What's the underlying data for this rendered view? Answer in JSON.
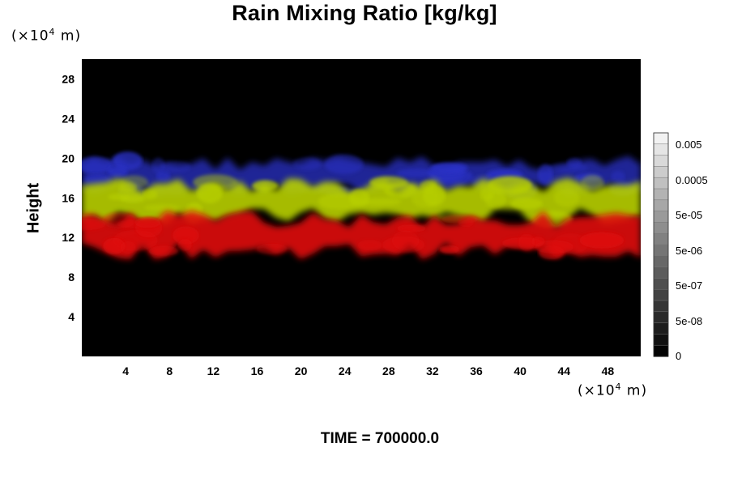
{
  "title": "Rain Mixing Ratio [kg/kg]",
  "y_unit": {
    "base": "(×10",
    "exp": "4",
    "suffix": " m)"
  },
  "x_unit": {
    "base": "(×10",
    "exp": "4",
    "suffix": " m)"
  },
  "ylabel": "Height",
  "time_label": "TIME = 700000.0",
  "chart_data": {
    "type": "heatmap",
    "title": "Rain Mixing Ratio [kg/kg]",
    "xlabel": "",
    "ylabel": "Height",
    "x_ticks": [
      "4",
      "8",
      "12",
      "16",
      "20",
      "24",
      "28",
      "32",
      "36",
      "40",
      "44",
      "48"
    ],
    "x_tick_values": [
      4,
      8,
      12,
      16,
      20,
      24,
      28,
      32,
      36,
      40,
      44,
      48
    ],
    "y_ticks": [
      "4",
      "8",
      "12",
      "16",
      "20",
      "24",
      "28"
    ],
    "y_tick_values": [
      4,
      8,
      12,
      16,
      20,
      24,
      28
    ],
    "xlim": [
      0,
      51
    ],
    "ylim": [
      0,
      30
    ],
    "colorbar_labels": [
      "0.005",
      "0.0005",
      "5e-05",
      "5e-06",
      "5e-07",
      "5e-08",
      "0"
    ],
    "colorbar_steps": 20,
    "layers": [
      {
        "color": "#2b33c8",
        "ymin": 16.5,
        "ymax": 19.8
      },
      {
        "color": "#b8d000",
        "ymin": 13.8,
        "ymax": 17.6
      },
      {
        "color": "#e01010",
        "ymin": 10.3,
        "ymax": 14.2
      }
    ]
  }
}
